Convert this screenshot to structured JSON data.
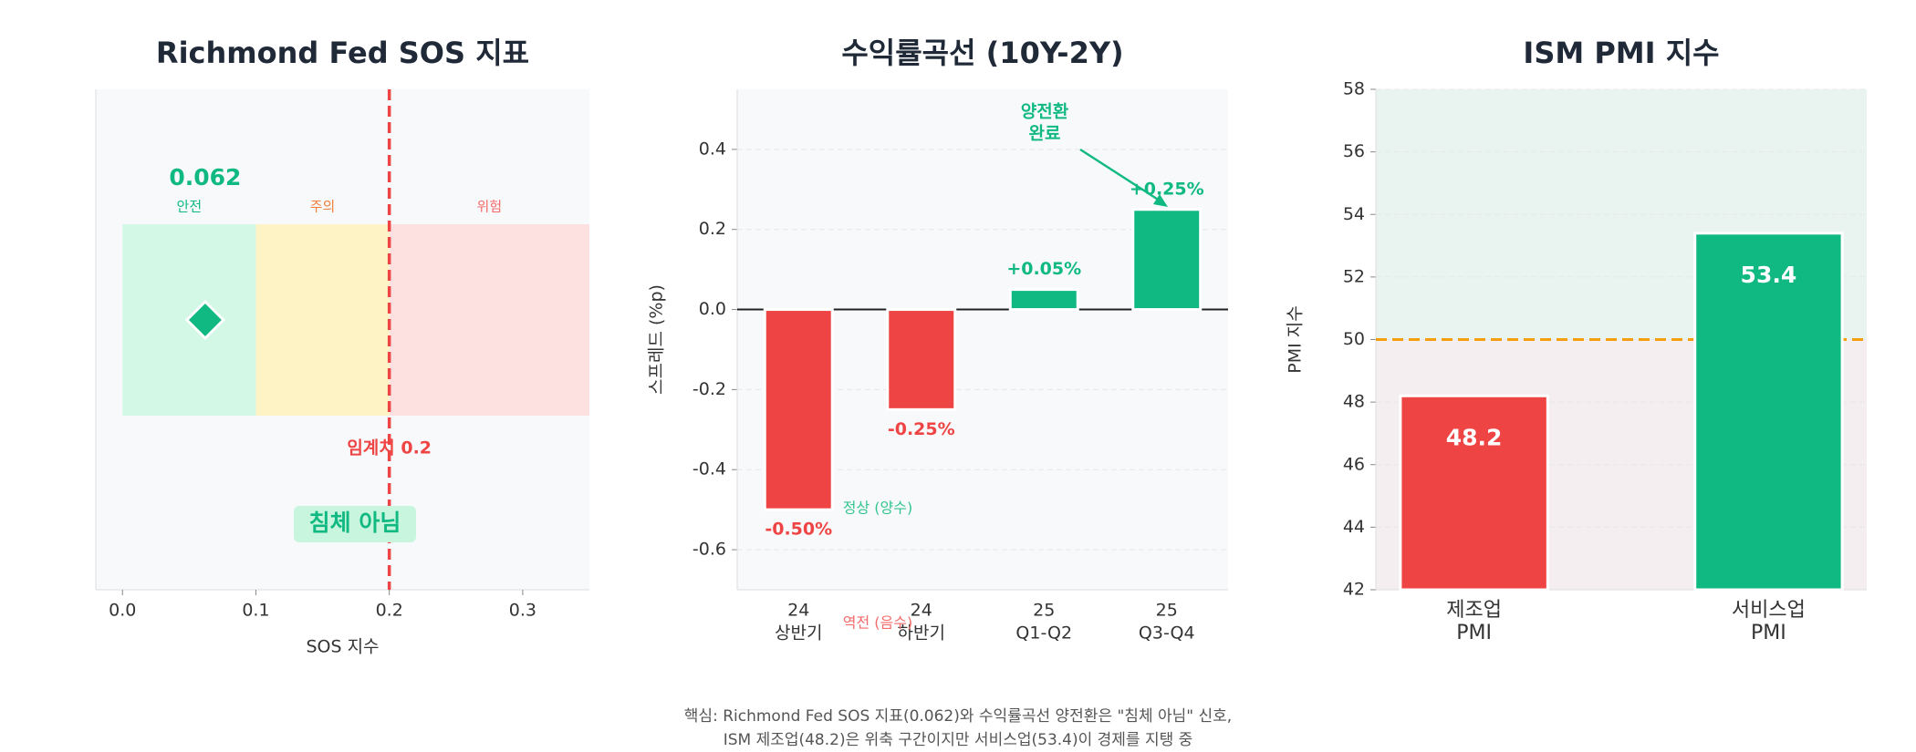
{
  "chart_data": [
    {
      "type": "gauge",
      "title": "Richmond Fed SOS 지표",
      "x_label": "SOS 지수",
      "xlim": [
        -0.02,
        0.35
      ],
      "xticks": [
        {
          "value": 0,
          "label": "0.0"
        },
        0.1,
        0.2,
        0.3
      ],
      "zones": [
        {
          "name": "안전",
          "start": 0,
          "end": 0.1,
          "color": "#d3f8e6",
          "label_color": "#10b981"
        },
        {
          "name": "주의",
          "start": 0.1,
          "end": 0.2,
          "color": "#fdf3c4",
          "label_color": "#f0803c"
        },
        {
          "name": "위험",
          "start": 0.2,
          "end": 0.35,
          "color": "#fde1e1",
          "label_color": "#f36b6b"
        }
      ],
      "value": 0.062,
      "color": "#10b981",
      "threshold": 0.2,
      "threshold_label": "임계치 0.2",
      "threshold_color": "#ef4444",
      "status": "침체 아님"
    },
    {
      "type": "bar",
      "title": "수익률곡선 (10Y-2Y)",
      "y_label": "스프레드 (%p)",
      "categories": [
        [
          "24",
          "상반기"
        ],
        [
          "24",
          "하반기"
        ],
        [
          "25",
          "Q1-Q2"
        ],
        [
          "25",
          "Q3-Q4"
        ]
      ],
      "values": [
        -0.5,
        -0.25,
        0.05,
        0.25
      ],
      "value_labels": [
        "-0.50%",
        "-0.25%",
        "+0.05%",
        "+0.25%"
      ],
      "colors": [
        "#ef4444",
        "#ef4444",
        "#10b981",
        "#10b981"
      ],
      "ylim": [
        -0.7,
        0.55
      ],
      "yticks": [
        -0.6,
        -0.4,
        -0.2,
        {
          "value": 0,
          "label": "0.0"
        },
        0.2,
        0.4
      ],
      "grid": true,
      "zero_line": true,
      "label_inside": false,
      "annotation": [
        "양전환",
        "완료"
      ],
      "annotation_color": "#10b981",
      "region_labels": {
        "positive": "정상 (양수)",
        "negative": "역전 (음수)"
      }
    },
    {
      "type": "bar",
      "title": "ISM PMI 지수",
      "y_label": "PMI 지수",
      "categories": [
        [
          "제조업",
          "PMI"
        ],
        [
          "서비스업",
          "PMI"
        ]
      ],
      "values": [
        48.2,
        53.4
      ],
      "colors": [
        "#ef4444",
        "#10b981"
      ],
      "ylim": [
        42,
        58
      ],
      "yticks": [
        42,
        44,
        46,
        48,
        50,
        52,
        54,
        56,
        58
      ],
      "grid": true,
      "label_inside": true,
      "threshold": 50,
      "threshold_color": "#f59e0b",
      "zones": [
        {
          "start": 50,
          "end": 58,
          "color": "#e9f4f0"
        },
        {
          "start": 42,
          "end": 50,
          "color": "#f5eef0"
        }
      ]
    }
  ],
  "footnote": [
    "핵심: Richmond Fed SOS 지표(0.062)와 수익률곡선 양전환은 \"침체 아님\" 신호,",
    "ISM 제조업(48.2)은 위축 구간이지만 서비스업(53.4)이 경제를 지탱 중"
  ]
}
